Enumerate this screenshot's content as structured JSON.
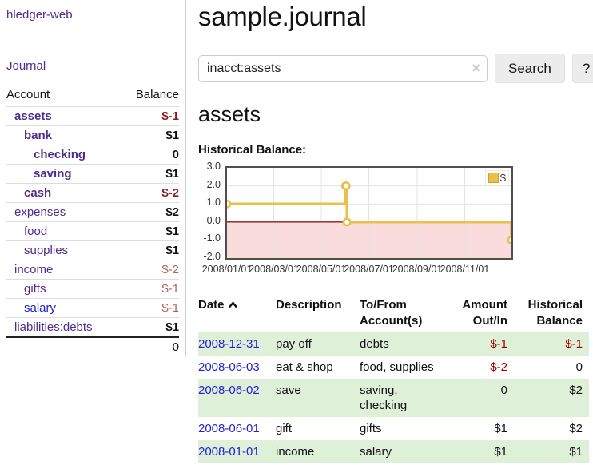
{
  "app": {
    "brand": "hledger-web"
  },
  "nav": {
    "journal": "Journal"
  },
  "sidebar": {
    "header": {
      "account": "Account",
      "balance": "Balance"
    },
    "accounts": [
      {
        "name": "assets",
        "balance": "$-1"
      },
      {
        "name": "bank",
        "balance": "$1"
      },
      {
        "name": "checking",
        "balance": "0"
      },
      {
        "name": "saving",
        "balance": "$1"
      },
      {
        "name": "cash",
        "balance": "$-2"
      },
      {
        "name": "expenses",
        "balance": "$2"
      },
      {
        "name": "food",
        "balance": "$1"
      },
      {
        "name": "supplies",
        "balance": "$1"
      },
      {
        "name": "income",
        "balance": "$-2"
      },
      {
        "name": "gifts",
        "balance": "$-1"
      },
      {
        "name": "salary",
        "balance": "$-1"
      },
      {
        "name": "liabilities:debts",
        "balance": "$1"
      }
    ],
    "total": "0"
  },
  "main": {
    "title": "sample.journal",
    "search": {
      "value": "inacct:assets",
      "clear": "×",
      "submit": "Search",
      "help": "?"
    },
    "account_heading": "assets"
  },
  "chart_data": {
    "type": "line",
    "step": true,
    "title": "Historical Balance:",
    "legend": {
      "label": "$",
      "position": "top-right"
    },
    "xlim": [
      "2008-01-01",
      "2008-12-31"
    ],
    "ylim": [
      -2,
      3
    ],
    "yticks": [
      3,
      2,
      1,
      0,
      -1,
      -2
    ],
    "xticks": [
      "2008/01/01",
      "2008/03/01",
      "2008/05/01",
      "2008/07/01",
      "2008/09/01",
      "2008/11/01"
    ],
    "series": [
      {
        "name": "$",
        "color": "#e9c04a",
        "points": [
          [
            "2008-01-01",
            1
          ],
          [
            "2008-06-01",
            2
          ],
          [
            "2008-06-02",
            2
          ],
          [
            "2008-06-03",
            0
          ],
          [
            "2008-12-31",
            -1
          ]
        ]
      }
    ],
    "colors": {
      "negative_region": "#fadcdc",
      "zero_line": "#8f1a1a",
      "grid": "#e3e3e3",
      "border": "#4f4f4f"
    }
  },
  "register": {
    "headers": {
      "date": "Date",
      "description": "Description",
      "accounts": "To/From Account(s)",
      "amount": "Amount Out/In",
      "balance": "Historical Balance"
    },
    "rows": [
      {
        "date": "2008-12-31",
        "description": "pay off",
        "accounts": "debts",
        "amount": "$-1",
        "balance": "$-1"
      },
      {
        "date": "2008-06-03",
        "description": "eat & shop",
        "accounts": "food, supplies",
        "amount": "$-2",
        "balance": "0"
      },
      {
        "date": "2008-06-02",
        "description": "save",
        "accounts": "saving, checking",
        "amount": "0",
        "balance": "$2"
      },
      {
        "date": "2008-06-01",
        "description": "gift",
        "accounts": "gifts",
        "amount": "$1",
        "balance": "$2"
      },
      {
        "date": "2008-01-01",
        "description": "income",
        "accounts": "salary",
        "amount": "$1",
        "balance": "$1"
      }
    ]
  },
  "colors": {
    "link_purple": "#4f2d8f",
    "link_blue": "#2323d0",
    "neg_strong": "#8b1b1b",
    "neg_table": "#a40000",
    "neg_muted": "#b2635f",
    "row_green": "#dff0d8",
    "series_yellow": "#e9c04a"
  }
}
